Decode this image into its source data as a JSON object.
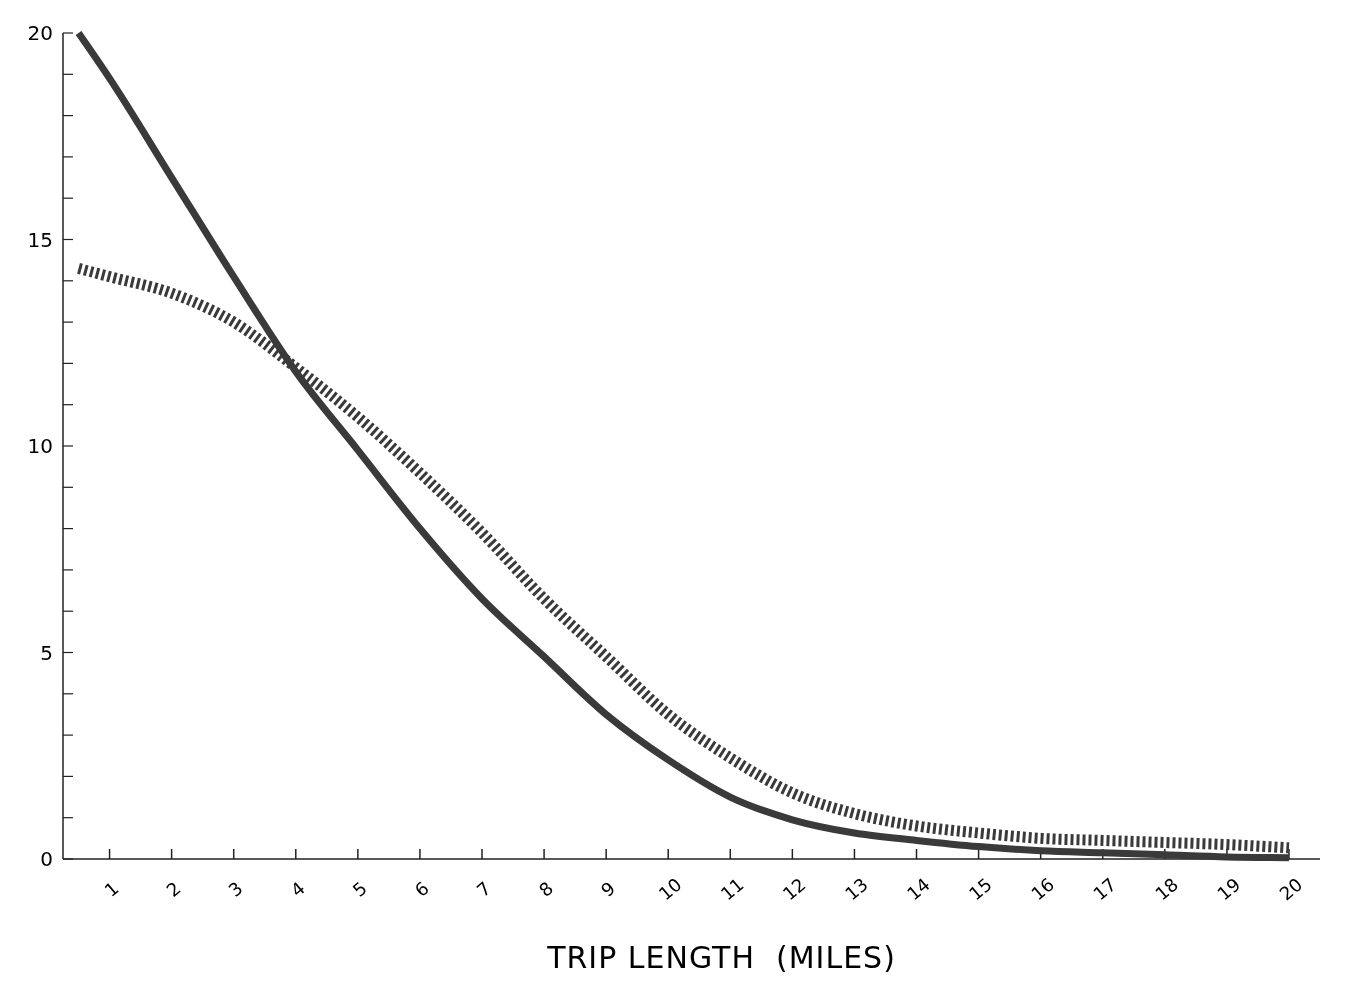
{
  "chart_data": {
    "type": "line",
    "xlabel": "TRIP LENGTH  (MILES)",
    "xlim": [
      0.25,
      20.5
    ],
    "ylim": [
      0,
      20
    ],
    "xticks": [
      1,
      2,
      3,
      4,
      5,
      6,
      7,
      8,
      9,
      10,
      11,
      12,
      13,
      14,
      15,
      16,
      17,
      18,
      19,
      20
    ],
    "yticks": [
      0,
      {
        "value": 1,
        "label": null
      },
      {
        "value": 2,
        "label": null
      },
      {
        "value": 3,
        "label": null
      },
      {
        "value": 4,
        "label": null
      },
      5,
      {
        "value": 6,
        "label": null
      },
      {
        "value": 7,
        "label": null
      },
      {
        "value": 8,
        "label": null
      },
      {
        "value": 9,
        "label": null
      },
      10,
      {
        "value": 11,
        "label": null
      },
      {
        "value": 12,
        "label": null
      },
      {
        "value": 13,
        "label": null
      },
      {
        "value": 14,
        "label": null
      },
      15,
      {
        "value": 16,
        "label": null
      },
      {
        "value": 17,
        "label": null
      },
      {
        "value": 18,
        "label": null
      },
      {
        "value": 19,
        "label": null
      },
      20
    ],
    "grid": false,
    "marker": "none",
    "series": [
      {
        "color": "#3a3a3a",
        "line_style": "solid",
        "x": [
          0.5,
          1,
          2,
          3,
          4,
          5,
          6,
          7,
          8,
          9,
          10,
          11,
          12,
          13,
          14,
          15,
          16,
          17,
          18,
          19,
          20
        ],
        "values": [
          20,
          18.9,
          16.5,
          14.1,
          11.8,
          9.9,
          8,
          6.3,
          4.9,
          3.5,
          2.4,
          1.5,
          0.95,
          0.63,
          0.45,
          0.3,
          0.2,
          0.15,
          0.1,
          0.05,
          0.03
        ]
      },
      {
        "color": "#3a3a3a",
        "line_style": "dashed",
        "x": [
          0.5,
          1,
          2,
          3,
          4,
          5,
          6,
          7,
          8,
          9,
          10,
          11,
          12,
          13,
          14,
          15,
          16,
          17,
          18,
          19,
          20
        ],
        "values": [
          14.3,
          14.1,
          13.7,
          13,
          11.9,
          10.7,
          9.35,
          7.9,
          6.3,
          4.9,
          3.5,
          2.45,
          1.6,
          1.1,
          0.8,
          0.63,
          0.5,
          0.45,
          0.4,
          0.35,
          0.27
        ]
      }
    ]
  }
}
